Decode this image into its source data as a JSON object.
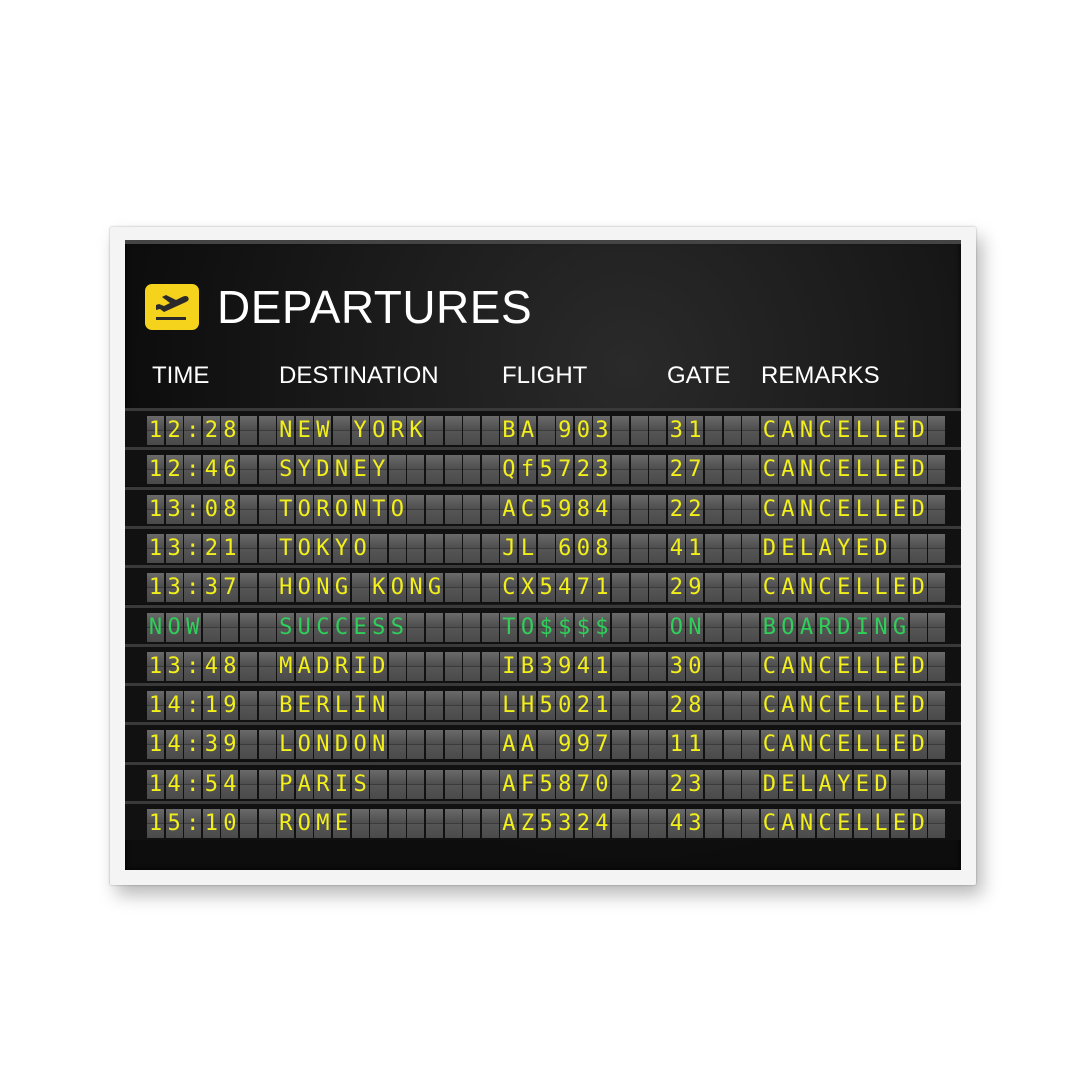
{
  "board": {
    "title": "DEPARTURES",
    "icon": "airplane-departure-icon",
    "accent": "#f5d21c",
    "headers": {
      "time": "TIME",
      "destination": "DESTINATION",
      "flight": "FLIGHT",
      "gate": "GATE",
      "remarks": "REMARKS"
    },
    "rows": [
      {
        "time": "12:28",
        "destination": "NEW YORK",
        "flight": "BA 903",
        "gate": "31",
        "remarks": "CANCELLED"
      },
      {
        "time": "12:46",
        "destination": "SYDNEY",
        "flight": "Qf5723",
        "gate": "27",
        "remarks": "CANCELLED"
      },
      {
        "time": "13:08",
        "destination": "TORONTO",
        "flight": "AC5984",
        "gate": "22",
        "remarks": "CANCELLED"
      },
      {
        "time": "13:21",
        "destination": "TOKYO",
        "flight": "JL 608",
        "gate": "41",
        "remarks": "DELAYED"
      },
      {
        "time": "13:37",
        "destination": "HONG KONG",
        "flight": "CX5471",
        "gate": "29",
        "remarks": "CANCELLED"
      },
      {
        "time": "NOW",
        "destination": "SUCCESS",
        "flight": "TO$$$$",
        "gate": "ON",
        "remarks": "BOARDING",
        "highlight": true
      },
      {
        "time": "13:48",
        "destination": "MADRID",
        "flight": "IB3941",
        "gate": "30",
        "remarks": "CANCELLED"
      },
      {
        "time": "14:19",
        "destination": "BERLIN",
        "flight": "LH5021",
        "gate": "28",
        "remarks": "CANCELLED"
      },
      {
        "time": "14:39",
        "destination": "LONDON",
        "flight": "AA 997",
        "gate": "11",
        "remarks": "CANCELLED"
      },
      {
        "time": "14:54",
        "destination": "PARIS",
        "flight": "AF5870",
        "gate": "23",
        "remarks": "DELAYED"
      },
      {
        "time": "15:10",
        "destination": "ROME",
        "flight": "AZ5324",
        "gate": "43",
        "remarks": "CANCELLED"
      }
    ]
  },
  "colors": {
    "text": "#f2ef1a",
    "highlight": "#2fcf5a"
  }
}
